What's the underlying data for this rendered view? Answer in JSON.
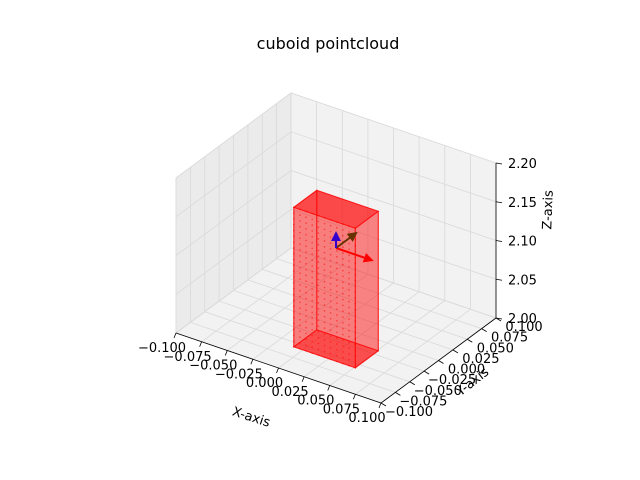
{
  "chart_data": {
    "type": "scatter3d",
    "title": "cuboid pointcloud",
    "xlabel": "X-axis",
    "ylabel": "Y-axis",
    "zlabel": "Z-axis",
    "xlim": [
      -0.1,
      0.1
    ],
    "ylim": [
      -0.1,
      0.1
    ],
    "zlim": [
      2.0,
      2.2
    ],
    "xticks": [
      "−0.100",
      "−0.075",
      "−0.050",
      "−0.025",
      "0.000",
      "0.025",
      "0.050",
      "0.075",
      "0.100"
    ],
    "yticks": [
      "−0.100",
      "−0.075",
      "−0.050",
      "−0.025",
      "0.000",
      "0.025",
      "0.050",
      "0.075",
      "0.100"
    ],
    "zticks": [
      "2.00",
      "2.05",
      "2.10",
      "2.15",
      "2.20"
    ],
    "xtick_values": [
      -0.1,
      -0.075,
      -0.05,
      -0.025,
      0.0,
      0.025,
      0.05,
      0.075,
      0.1
    ],
    "ytick_values": [
      -0.1,
      -0.075,
      -0.05,
      -0.025,
      0.0,
      0.025,
      0.05,
      0.075,
      0.1
    ],
    "ztick_values": [
      2.0,
      2.05,
      2.1,
      2.15,
      2.2
    ],
    "grid": true,
    "cuboid": {
      "x_range": [
        -0.03,
        0.03
      ],
      "y_range": [
        -0.02,
        0.02
      ],
      "z_range": [
        1.97,
        2.15
      ],
      "color": "#ff0000"
    },
    "frame_axes": {
      "origin": [
        0.0,
        0.0,
        2.1
      ],
      "length": 0.035,
      "colors": {
        "x": "#ff0000",
        "y": "#663300",
        "z": "#3300cc"
      }
    }
  }
}
